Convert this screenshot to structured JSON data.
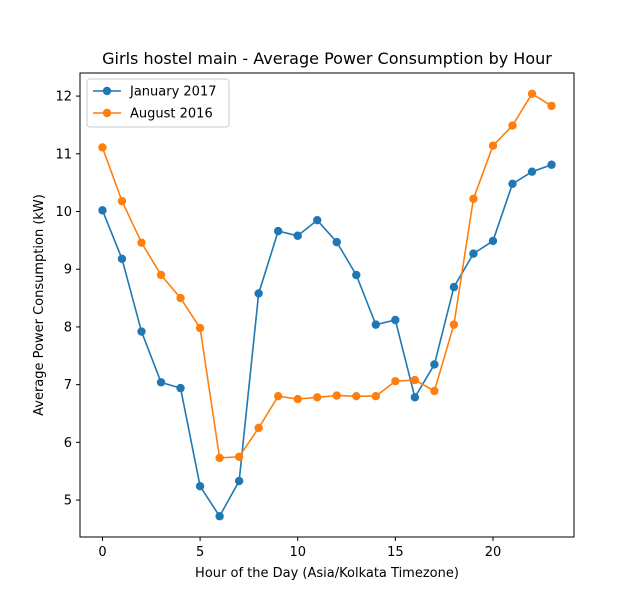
{
  "chart_data": {
    "type": "line",
    "title": "Girls hostel main - Average Power Consumption by Hour",
    "xlabel": "Hour of the Day (Asia/Kolkata Timezone)",
    "ylabel": "Average Power Consumption (kW)",
    "x": [
      0,
      1,
      2,
      3,
      4,
      5,
      6,
      7,
      8,
      9,
      10,
      11,
      12,
      13,
      14,
      15,
      16,
      17,
      18,
      19,
      20,
      21,
      22,
      23
    ],
    "xlim": [
      -1.15,
      24.15
    ],
    "ylim": [
      4.36,
      12.4
    ],
    "xticks": [
      0,
      5,
      10,
      15,
      20
    ],
    "yticks": [
      5,
      6,
      7,
      8,
      9,
      10,
      11,
      12
    ],
    "grid": false,
    "legend_position": "top-left",
    "series": [
      {
        "name": "January 2017",
        "color": "#1f77b4",
        "values": [
          10.02,
          9.18,
          7.92,
          7.04,
          6.94,
          5.24,
          4.72,
          5.33,
          8.58,
          9.66,
          9.58,
          9.85,
          9.47,
          8.9,
          8.04,
          8.12,
          6.78,
          7.35,
          8.69,
          9.27,
          9.49,
          10.48,
          10.69,
          10.81
        ]
      },
      {
        "name": "August 2016",
        "color": "#ff7f0e",
        "values": [
          11.11,
          10.18,
          9.46,
          8.9,
          8.5,
          7.98,
          5.73,
          5.75,
          6.25,
          6.8,
          6.75,
          6.78,
          6.81,
          6.8,
          6.8,
          7.06,
          7.08,
          6.89,
          8.04,
          10.22,
          11.14,
          11.49,
          12.04,
          11.83
        ]
      }
    ]
  }
}
